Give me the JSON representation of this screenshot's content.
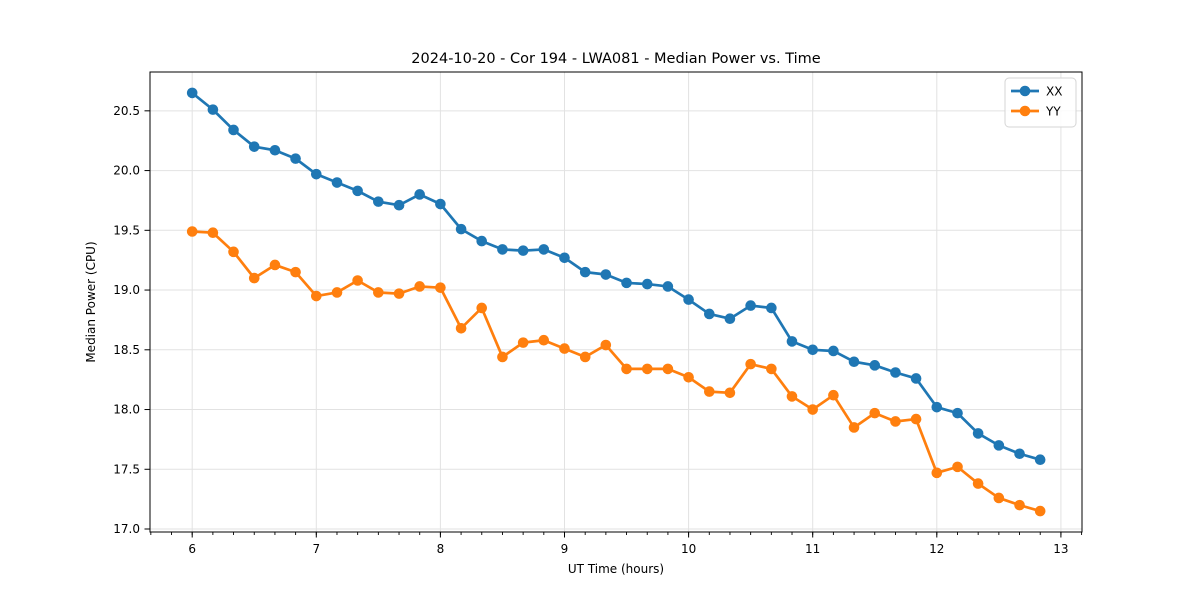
{
  "chart_data": {
    "type": "line",
    "title": "2024-10-20 - Cor 194 - LWA081 - Median Power vs. Time",
    "xlabel": "UT Time (hours)",
    "ylabel": "Median Power (CPU)",
    "xlim": [
      5.66,
      13.17
    ],
    "ylim": [
      16.975,
      20.825
    ],
    "x_major_ticks": [
      6,
      7,
      8,
      9,
      10,
      11,
      12,
      13
    ],
    "x_minor_step": 0.166667,
    "y_major_ticks": [
      17.0,
      17.5,
      18.0,
      18.5,
      19.0,
      19.5,
      20.0,
      20.5
    ],
    "x_tick_decimals": 0,
    "y_tick_decimals": 1,
    "grid": true,
    "grid_color": "#e2e2e2",
    "spine_color": "#000000",
    "legend_position": "upper right",
    "x": [
      6.0,
      6.167,
      6.333,
      6.5,
      6.667,
      6.833,
      7.0,
      7.167,
      7.333,
      7.5,
      7.667,
      7.833,
      8.0,
      8.167,
      8.333,
      8.5,
      8.667,
      8.833,
      9.0,
      9.167,
      9.333,
      9.5,
      9.667,
      9.833,
      10.0,
      10.167,
      10.333,
      10.5,
      10.667,
      10.833,
      11.0,
      11.167,
      11.333,
      11.5,
      11.667,
      11.833,
      12.0,
      12.167,
      12.333,
      12.5,
      12.667,
      12.833
    ],
    "series": [
      {
        "name": "XX",
        "color": "#1f77b4",
        "values": [
          20.65,
          20.51,
          20.34,
          20.2,
          20.17,
          20.1,
          19.97,
          19.9,
          19.83,
          19.74,
          19.71,
          19.8,
          19.72,
          19.51,
          19.41,
          19.34,
          19.33,
          19.34,
          19.27,
          19.15,
          19.13,
          19.06,
          19.05,
          19.03,
          18.92,
          18.8,
          18.76,
          18.87,
          18.85,
          18.57,
          18.5,
          18.49,
          18.4,
          18.37,
          18.31,
          18.26,
          18.02,
          17.97,
          17.8,
          17.7,
          17.63,
          17.58
        ]
      },
      {
        "name": "YY",
        "color": "#ff7f0e",
        "values": [
          19.49,
          19.48,
          19.32,
          19.1,
          19.21,
          19.15,
          18.95,
          18.98,
          19.08,
          18.98,
          18.97,
          19.03,
          19.02,
          18.68,
          18.85,
          18.44,
          18.56,
          18.58,
          18.51,
          18.44,
          18.54,
          18.34,
          18.34,
          18.34,
          18.27,
          18.15,
          18.14,
          18.38,
          18.34,
          18.11,
          18.0,
          18.12,
          17.85,
          17.97,
          17.9,
          17.92,
          17.47,
          17.52,
          17.38,
          17.26,
          17.2,
          17.15
        ]
      }
    ]
  }
}
